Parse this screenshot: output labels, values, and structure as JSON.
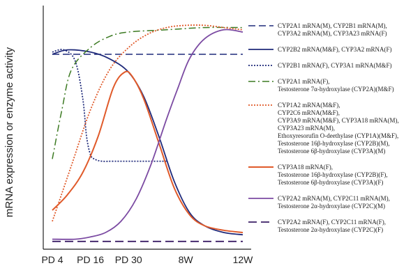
{
  "chart_data": {
    "type": "line",
    "title": "",
    "ylabel": "mRNA expression or enzyme activity",
    "xlabel": "",
    "x_ticks": [
      {
        "label": "PD 4",
        "x": 0
      },
      {
        "label": "PD 16",
        "x": 1
      },
      {
        "label": "PD 30",
        "x": 2
      },
      {
        "label": "8W",
        "x": 3.5
      },
      {
        "label": "12W",
        "x": 5
      }
    ],
    "xlim": [
      0,
      5
    ],
    "ylim": [
      0,
      100
    ],
    "grid": false,
    "legend_position": "right",
    "series": [
      {
        "legend": [
          "CYP2A1 mRNA(M), CYP2B1 mRNA(M),",
          "CYP3A2 mRNA(M), CYP3A23 mRNA(F)"
        ],
        "color": "#1f2a7a",
        "dash": "10,5",
        "width": 1.5,
        "x": [
          0,
          5
        ],
        "y": [
          85,
          85
        ]
      },
      {
        "legend": [
          "CYP2B2 mRNA(M&F), CYP3A2 mRNA(F)"
        ],
        "color": "#1f2a7a",
        "dash": "",
        "width": 1.8,
        "x": [
          0,
          0.4,
          1.0,
          1.5,
          2.0,
          2.4,
          2.8,
          3.2,
          3.6,
          4.0,
          4.5,
          5.0
        ],
        "y": [
          85,
          87,
          86,
          83,
          77,
          66,
          48,
          28,
          14,
          8,
          5,
          4
        ]
      },
      {
        "legend": [
          "CYP2B1 mRNA(F), CYP3A1 mRNA(M&F)"
        ],
        "color": "#1f2a7a",
        "dash": "2,2",
        "width": 1.8,
        "x": [
          0,
          0.3,
          0.6,
          0.8,
          0.9,
          1.0,
          1.1,
          1.3,
          1.6,
          2.0,
          3.0
        ],
        "y": [
          86,
          87,
          82,
          65,
          48,
          40,
          38,
          37,
          37,
          37,
          37
        ]
      },
      {
        "legend": [
          "CYP2A1 mRNA(F),",
          "Testosterone 7α-hydroxylase (CYP2A)(M&F)"
        ],
        "color": "#3c7a22",
        "dash": "10,4,2,4",
        "width": 1.5,
        "x": [
          0,
          0.25,
          0.5,
          1.0,
          1.5,
          2.0,
          3.0,
          4.0,
          5.0
        ],
        "y": [
          38,
          60,
          78,
          88,
          93,
          95,
          96,
          97,
          97
        ]
      },
      {
        "legend": [
          "CYP1A2 mRNA(M&F),",
          "CYP2C6 mRNA(M&F),",
          "CYP3A9 mRNA(M&F), CYP3A18 mRNA(M),",
          "CYP3A23 mRNA(M),",
          "Ethoxyresorufin O-deethylase (CYP1A)(M&F),",
          "Testosterone 16β-hydroxylase (CYP2B)(M),",
          "Testosterone 6β-hydroxylase (CYP3A)(M)"
        ],
        "color": "#e05a2a",
        "dash": "2,2",
        "width": 1.8,
        "x": [
          0,
          0.5,
          1.0,
          1.5,
          2.0,
          2.5,
          3.0,
          3.5,
          4.0,
          4.5,
          5.0
        ],
        "y": [
          10,
          35,
          60,
          78,
          88,
          94,
          97,
          98,
          98,
          97,
          96
        ]
      },
      {
        "legend": [
          "CYP3A18 mRNA(F),",
          "Testosterone 16β-hydroxylase (CYP2B)(F),",
          "Testosterone 6β-hydroxylase (CYP3A)(F)"
        ],
        "color": "#e05a2a",
        "dash": "",
        "width": 2,
        "x": [
          0,
          0.4,
          0.8,
          1.2,
          1.6,
          1.9,
          2.1,
          2.4,
          2.8,
          3.2,
          3.6,
          4.0,
          4.5,
          5.0
        ],
        "y": [
          15,
          22,
          32,
          48,
          70,
          77,
          75,
          65,
          45,
          25,
          13,
          8,
          6,
          5
        ]
      },
      {
        "legend": [
          "CYP2A2 mRNA(M), CYP2C11 mRNA(M),",
          "Testosterone 2α-hydroxylase (CYP2C)(M)"
        ],
        "color": "#7b4aa2",
        "dash": "",
        "width": 1.8,
        "x": [
          0,
          0.6,
          1.0,
          1.4,
          1.8,
          2.2,
          2.6,
          3.0,
          3.3,
          3.6,
          4.0,
          4.5,
          5.0
        ],
        "y": [
          2,
          2,
          3,
          5,
          10,
          20,
          36,
          56,
          70,
          83,
          92,
          96,
          95
        ]
      },
      {
        "legend": [
          "CYP2A2 mRNA(F), CYP2C11 mRNA(F),",
          "Testosterone 2α-hydroxylase (CYP2C)(F)"
        ],
        "color": "#3b1f66",
        "dash": "12,6",
        "width": 1.8,
        "x": [
          0,
          5
        ],
        "y": [
          1,
          1
        ]
      }
    ]
  }
}
